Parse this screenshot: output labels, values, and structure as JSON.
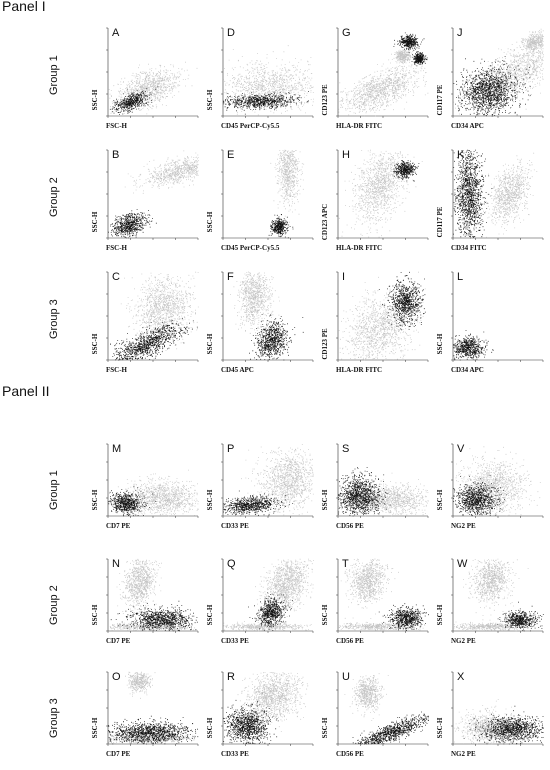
{
  "panel_titles": [
    "Panel I",
    "Panel II"
  ],
  "group_labels": [
    "Group 1",
    "Group 2",
    "Group 3"
  ],
  "chart_data": [
    {
      "type": "scatter",
      "panel": "Panel I",
      "group": "Group 1",
      "letter": "A",
      "xlabel": "FSC-H",
      "ylabel": "SSC-H",
      "gray": [
        [
          0.15,
          0.15,
          0.58,
          0.33,
          0.3
        ]
      ],
      "dark": [
        [
          0.1,
          0.08,
          0.3,
          0.15,
          0.35
        ]
      ]
    },
    {
      "type": "scatter",
      "panel": "Panel I",
      "group": "Group 1",
      "letter": "D",
      "xlabel": "CD45 PerCP-Cy5.5",
      "ylabel": "SSC-H",
      "gray": [
        [
          0.05,
          0.1,
          0.9,
          0.45,
          0.0
        ]
      ],
      "dark": [
        [
          0.05,
          0.1,
          0.7,
          0.13,
          0.05
        ]
      ]
    },
    {
      "type": "scatter",
      "panel": "Panel I",
      "group": "Group 1",
      "letter": "G",
      "xlabel": "HLA-DR FITC",
      "ylabel": "CD123 PE",
      "gray": [
        [
          0.1,
          0.12,
          0.75,
          0.35,
          0.4
        ],
        [
          0.65,
          0.62,
          0.15,
          0.12,
          0.0
        ]
      ],
      "dark": [
        [
          0.7,
          0.78,
          0.17,
          0.12,
          0.0
        ],
        [
          0.85,
          0.6,
          0.1,
          0.1,
          0.0
        ]
      ]
    },
    {
      "type": "scatter",
      "panel": "Panel I",
      "group": "Group 1",
      "letter": "J",
      "xlabel": "CD34 APC",
      "ylabel": "CD117 PE",
      "gray": [
        [
          0.3,
          0.3,
          0.9,
          0.45,
          0.5
        ],
        [
          0.8,
          0.75,
          0.22,
          0.18,
          0.2
        ]
      ],
      "dark": [
        [
          0.12,
          0.05,
          0.55,
          0.45,
          0.1
        ]
      ]
    },
    {
      "type": "scatter",
      "panel": "Panel I",
      "group": "Group 2",
      "letter": "B",
      "xlabel": "FSC-H",
      "ylabel": "SSC-H",
      "gray": [
        [
          0.45,
          0.65,
          0.7,
          0.22,
          0.25
        ]
      ],
      "dark": [
        [
          0.05,
          0.05,
          0.35,
          0.2,
          0.2
        ]
      ]
    },
    {
      "type": "scatter",
      "panel": "Panel I",
      "group": "Group 2",
      "letter": "E",
      "xlabel": "CD45 PerCP-Cy5.5",
      "ylabel": "SSC-H",
      "gray": [
        [
          0.62,
          0.45,
          0.2,
          0.65,
          0.0
        ]
      ],
      "dark": [
        [
          0.55,
          0.05,
          0.15,
          0.15,
          0.0
        ]
      ]
    },
    {
      "type": "scatter",
      "panel": "Panel I",
      "group": "Group 2",
      "letter": "H",
      "xlabel": "HLA-DR FITC",
      "ylabel": "CD123 APC",
      "gray": [
        [
          0.2,
          0.25,
          0.5,
          0.7,
          0.5
        ]
      ],
      "dark": [
        [
          0.65,
          0.7,
          0.18,
          0.15,
          0.0
        ]
      ]
    },
    {
      "type": "scatter",
      "panel": "Panel I",
      "group": "Group 2",
      "letter": "K",
      "xlabel": "CD34 FITC",
      "ylabel": "CD117 PE",
      "gray": [
        [
          0.45,
          0.25,
          0.35,
          0.5,
          0.6
        ]
      ],
      "dark": [
        [
          0.05,
          0.05,
          0.25,
          0.9,
          0.0
        ]
      ]
    },
    {
      "type": "scatter",
      "panel": "Panel I",
      "group": "Group 3",
      "letter": "C",
      "xlabel": "FSC-H",
      "ylabel": "SSC-H",
      "gray": [
        [
          0.35,
          0.3,
          0.55,
          0.6,
          0.1
        ]
      ],
      "dark": [
        [
          0.1,
          0.05,
          0.65,
          0.25,
          0.45
        ]
      ]
    },
    {
      "type": "scatter",
      "panel": "Panel I",
      "group": "Group 3",
      "letter": "F",
      "xlabel": "CD45 APC",
      "ylabel": "SSC-H",
      "gray": [
        [
          0.2,
          0.45,
          0.3,
          0.55,
          0.0
        ]
      ],
      "dark": [
        [
          0.4,
          0.05,
          0.3,
          0.35,
          0.2
        ]
      ]
    },
    {
      "type": "scatter",
      "panel": "Panel I",
      "group": "Group 3",
      "letter": "I",
      "xlabel": "HLA-DR FITC",
      "ylabel": "CD123 PE",
      "gray": [
        [
          0.15,
          0.05,
          0.6,
          0.6,
          0.3
        ]
      ],
      "dark": [
        [
          0.6,
          0.45,
          0.3,
          0.4,
          0.0
        ]
      ]
    },
    {
      "type": "scatter",
      "panel": "Panel I",
      "group": "Group 3",
      "letter": "L",
      "xlabel": "CD34 APC",
      "ylabel": "SSC-H",
      "gray": [],
      "dark": [
        [
          0.02,
          0.03,
          0.3,
          0.22,
          0.0
        ]
      ]
    },
    {
      "type": "scatter",
      "panel": "Panel II",
      "group": "Group 1",
      "letter": "M",
      "xlabel": "CD7 PE",
      "ylabel": "SSC-H",
      "gray": [
        [
          0.25,
          0.05,
          0.7,
          0.4,
          0.0
        ]
      ],
      "dark": [
        [
          0.05,
          0.05,
          0.3,
          0.25,
          0.0
        ]
      ]
    },
    {
      "type": "scatter",
      "panel": "Panel II",
      "group": "Group 1",
      "letter": "P",
      "xlabel": "CD33 PE",
      "ylabel": "SSC-H",
      "gray": [
        [
          0.45,
          0.15,
          0.55,
          0.7,
          0.1
        ]
      ],
      "dark": [
        [
          0.05,
          0.05,
          0.5,
          0.2,
          0.1
        ]
      ]
    },
    {
      "type": "scatter",
      "panel": "Panel II",
      "group": "Group 1",
      "letter": "S",
      "xlabel": "CD56 PE",
      "ylabel": "SSC-H",
      "gray": [
        [
          0.15,
          0.05,
          0.8,
          0.35,
          0.0
        ]
      ],
      "dark": [
        [
          0.03,
          0.05,
          0.4,
          0.45,
          0.0
        ]
      ]
    },
    {
      "type": "scatter",
      "panel": "Panel II",
      "group": "Group 1",
      "letter": "V",
      "xlabel": "NG2 PE",
      "ylabel": "SSC-H",
      "gray": [
        [
          0.15,
          0.1,
          0.6,
          0.6,
          0.0
        ]
      ],
      "dark": [
        [
          0.05,
          0.05,
          0.4,
          0.35,
          0.0
        ]
      ]
    },
    {
      "type": "scatter",
      "panel": "Panel II",
      "group": "Group 2",
      "letter": "N",
      "xlabel": "CD7 PE",
      "ylabel": "SSC-H",
      "gray": [
        [
          0.2,
          0.4,
          0.3,
          0.55,
          0.5
        ],
        [
          0.05,
          0.02,
          0.8,
          0.08,
          0.0
        ]
      ],
      "dark": [
        [
          0.3,
          0.03,
          0.6,
          0.25,
          0.0
        ]
      ]
    },
    {
      "type": "scatter",
      "panel": "Panel II",
      "group": "Group 2",
      "letter": "Q",
      "xlabel": "CD33 PE",
      "ylabel": "SSC-H",
      "gray": [
        [
          0.5,
          0.35,
          0.4,
          0.6,
          0.5
        ],
        [
          0.05,
          0.02,
          0.8,
          0.08,
          0.0
        ]
      ],
      "dark": [
        [
          0.4,
          0.1,
          0.25,
          0.3,
          0.2
        ]
      ]
    },
    {
      "type": "scatter",
      "panel": "Panel II",
      "group": "Group 2",
      "letter": "T",
      "xlabel": "CD56 PE",
      "ylabel": "SSC-H",
      "gray": [
        [
          0.15,
          0.45,
          0.35,
          0.5,
          0.2
        ],
        [
          0.05,
          0.02,
          0.8,
          0.08,
          0.0
        ]
      ],
      "dark": [
        [
          0.6,
          0.05,
          0.3,
          0.25,
          0.0
        ]
      ]
    },
    {
      "type": "scatter",
      "panel": "Panel II",
      "group": "Group 2",
      "letter": "W",
      "xlabel": "NG2 PE",
      "ylabel": "SSC-H",
      "gray": [
        [
          0.25,
          0.45,
          0.35,
          0.5,
          0.2
        ],
        [
          0.05,
          0.02,
          0.6,
          0.08,
          0.0
        ]
      ],
      "dark": [
        [
          0.6,
          0.05,
          0.3,
          0.2,
          0.0
        ]
      ]
    },
    {
      "type": "scatter",
      "panel": "Panel II",
      "group": "Group 3",
      "letter": "O",
      "xlabel": "CD7 PE",
      "ylabel": "SSC-H",
      "gray": [
        [
          0.25,
          0.75,
          0.2,
          0.25,
          0.0
        ],
        [
          0.05,
          0.02,
          0.8,
          0.12,
          0.0
        ]
      ],
      "dark": [
        [
          0.05,
          0.03,
          0.8,
          0.25,
          0.0
        ]
      ]
    },
    {
      "type": "scatter",
      "panel": "Panel II",
      "group": "Group 3",
      "letter": "R",
      "xlabel": "CD33 PE",
      "ylabel": "SSC-H",
      "gray": [
        [
          0.3,
          0.4,
          0.5,
          0.55,
          0.2
        ]
      ],
      "dark": [
        [
          0.05,
          0.05,
          0.4,
          0.4,
          0.0
        ]
      ]
    },
    {
      "type": "scatter",
      "panel": "Panel II",
      "group": "Group 3",
      "letter": "U",
      "xlabel": "CD56 PE",
      "ylabel": "SSC-H",
      "gray": [
        [
          0.2,
          0.5,
          0.25,
          0.4,
          0.0
        ]
      ],
      "dark": [
        [
          0.2,
          0.05,
          0.75,
          0.2,
          0.5
        ]
      ]
    },
    {
      "type": "scatter",
      "panel": "Panel II",
      "group": "Group 3",
      "letter": "X",
      "xlabel": "NG2 PE",
      "ylabel": "SSC-H",
      "gray": [
        [
          0.15,
          0.05,
          0.5,
          0.35,
          0.0
        ]
      ],
      "dark": [
        [
          0.4,
          0.05,
          0.55,
          0.3,
          0.0
        ]
      ]
    }
  ]
}
